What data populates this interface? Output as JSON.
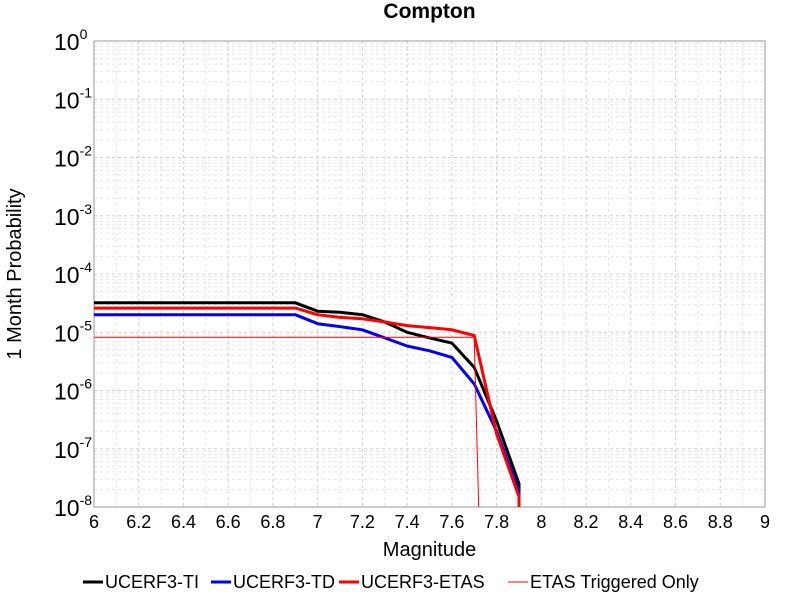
{
  "chart_data": {
    "type": "line",
    "title": "Compton",
    "xlabel": "Magnitude",
    "ylabel": "1 Month Probability",
    "xlim": [
      6,
      9
    ],
    "ylim": [
      1e-08,
      1
    ],
    "y_scale": "log",
    "grid": true,
    "legend_position": "bottom",
    "x_ticks": [
      "6",
      "6.2",
      "6.4",
      "6.6",
      "6.8",
      "7",
      "7.2",
      "7.4",
      "7.6",
      "7.8",
      "8",
      "8.2",
      "8.4",
      "8.6",
      "8.8",
      "9"
    ],
    "y_ticks": [
      {
        "base": "10",
        "exp": "0"
      },
      {
        "base": "10",
        "exp": "-1"
      },
      {
        "base": "10",
        "exp": "-2"
      },
      {
        "base": "10",
        "exp": "-3"
      },
      {
        "base": "10",
        "exp": "-4"
      },
      {
        "base": "10",
        "exp": "-5"
      },
      {
        "base": "10",
        "exp": "-6"
      },
      {
        "base": "10",
        "exp": "-7"
      },
      {
        "base": "10",
        "exp": "-8"
      }
    ],
    "series": [
      {
        "name": "UCERF3-TI",
        "color": "#000000",
        "x": [
          6.0,
          6.9,
          7.0,
          7.1,
          7.2,
          7.3,
          7.4,
          7.5,
          7.6,
          7.7,
          7.8,
          7.9,
          7.9
        ],
        "y": [
          3.2e-05,
          3.2e-05,
          2.3e-05,
          2.2e-05,
          2e-05,
          1.5e-05,
          1e-05,
          8e-06,
          6.5e-06,
          2.5e-06,
          3e-07,
          2.5e-08,
          9e-09
        ]
      },
      {
        "name": "UCERF3-TD",
        "color": "#0000ff",
        "x": [
          6.0,
          6.9,
          7.0,
          7.1,
          7.2,
          7.3,
          7.4,
          7.5,
          7.6,
          7.7,
          7.8,
          7.9,
          7.9
        ],
        "y": [
          2e-05,
          2e-05,
          1.4e-05,
          1.25e-05,
          1.1e-05,
          8e-06,
          5.8e-06,
          4.8e-06,
          3.7e-06,
          1.3e-06,
          2e-07,
          1.8e-08,
          9e-09
        ]
      },
      {
        "name": "UCERF3-ETAS",
        "color": "#ff0000",
        "x": [
          6.0,
          6.9,
          7.0,
          7.1,
          7.2,
          7.3,
          7.4,
          7.5,
          7.6,
          7.7,
          7.8,
          7.9,
          7.9
        ],
        "y": [
          2.6e-05,
          2.6e-05,
          2e-05,
          1.8e-05,
          1.7e-05,
          1.5e-05,
          1.3e-05,
          1.2e-05,
          1.1e-05,
          8.8e-06,
          1.8e-07,
          1.5e-08,
          9e-09
        ]
      },
      {
        "name": "ETAS Triggered Only",
        "color": "#ff0000",
        "x": [
          6.0,
          7.7,
          7.72
        ],
        "y": [
          8.2e-06,
          8.2e-06,
          9e-09
        ]
      }
    ]
  }
}
